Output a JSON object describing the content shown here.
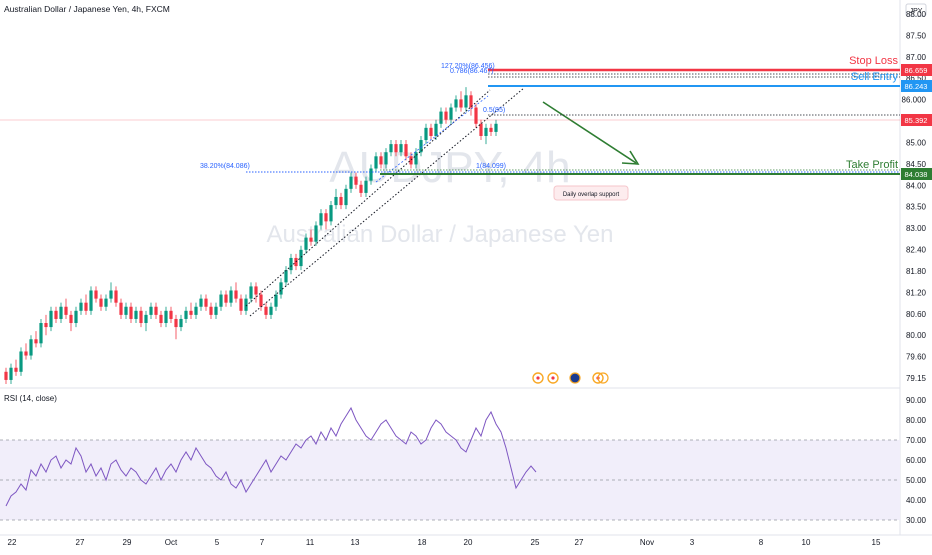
{
  "header": {
    "title": "Australian Dollar / Japanese Yen, 4h, FXCM",
    "currency": "JPY"
  },
  "watermark": {
    "symbol": "AUDJPY, 4h",
    "name": "Australian Dollar / Japanese Yen"
  },
  "colors": {
    "bull": "#089981",
    "bear": "#f23645",
    "stop": "#f23645",
    "entry": "#2196f3",
    "profit": "#2e7d32",
    "fib": "#2962ff",
    "rsi_line": "#7e57c2",
    "rsi_fill": "#f1eefa",
    "current": "#f23645"
  },
  "price_axis": {
    "labels": [
      "88.00",
      "87.50",
      "87.00",
      "86.50",
      "86.000",
      "85.50",
      "85.00",
      "84.50",
      "84.00",
      "83.50",
      "83.00",
      "82.40",
      "81.80",
      "81.20",
      "80.60",
      "80.00",
      "79.60",
      "79.15"
    ]
  },
  "rsi_axis": {
    "labels": [
      "90.00",
      "80.00",
      "70.00",
      "60.00",
      "50.00",
      "40.00",
      "30.00"
    ]
  },
  "rsi": {
    "title": "RSI (14, close)",
    "upper": 70,
    "lower": 30,
    "values": [
      37,
      42,
      44,
      48,
      45,
      55,
      52,
      58,
      54,
      60,
      62,
      56,
      60,
      58,
      66,
      62,
      54,
      58,
      52,
      56,
      50,
      58,
      60,
      55,
      52,
      56,
      54,
      50,
      48,
      52,
      56,
      50,
      55,
      58,
      54,
      60,
      64,
      60,
      66,
      62,
      58,
      56,
      52,
      50,
      54,
      48,
      46,
      50,
      44,
      48,
      52,
      56,
      60,
      54,
      58,
      62,
      60,
      64,
      68,
      66,
      70,
      72,
      68,
      74,
      70,
      76,
      72,
      78,
      82,
      86,
      80,
      76,
      72,
      70,
      74,
      78,
      80,
      76,
      72,
      70,
      68,
      74,
      72,
      68,
      70,
      76,
      80,
      78,
      74,
      72,
      70,
      66,
      64,
      70,
      76,
      72,
      80,
      84,
      78,
      74,
      66,
      56,
      46,
      50,
      54,
      57,
      54
    ],
    "first_index": 0
  },
  "levels": {
    "stop_loss": {
      "label": "Stop Loss",
      "price_label": "86.659",
      "value": 86.659
    },
    "sell_entry": {
      "label": "Sell Entry",
      "price_label": "86.243",
      "value": 86.243
    },
    "take_profit": {
      "label": "Take Profit",
      "price_label": "84.038",
      "value": 84.038
    },
    "current": {
      "price_label": "85.392",
      "value": 85.392
    }
  },
  "fibs": {
    "ext": "127.20%(86.456)",
    "retr786": "0.786(86.467)",
    "retr382": "38.20%(84.086)",
    "retr1": "1(84.099)",
    "small": "0.5(85)"
  },
  "annotation": "Daily overlap support",
  "date_axis": {
    "labels": [
      "22",
      "27",
      "29",
      "Oct",
      "5",
      "7",
      "11",
      "13",
      "18",
      "20",
      "25",
      "27",
      "Nov",
      "3",
      "8",
      "10",
      "15"
    ]
  },
  "chart_data": {
    "type": "candlestick",
    "title": "Australian Dollar / Japanese Yen, 4h, FXCM",
    "ylim": [
      79.0,
      88.1
    ],
    "candles": [
      [
        79.3,
        79.1,
        79.4,
        79.0
      ],
      [
        79.1,
        79.4,
        79.5,
        79.0
      ],
      [
        79.4,
        79.3,
        79.6,
        79.2
      ],
      [
        79.3,
        79.8,
        79.9,
        79.2
      ],
      [
        79.8,
        79.7,
        80.0,
        79.6
      ],
      [
        79.7,
        80.1,
        80.2,
        79.6
      ],
      [
        80.1,
        80.0,
        80.3,
        79.9
      ],
      [
        80.0,
        80.5,
        80.6,
        79.9
      ],
      [
        80.5,
        80.4,
        80.7,
        80.2
      ],
      [
        80.4,
        80.8,
        80.9,
        80.3
      ],
      [
        80.8,
        80.6,
        80.9,
        80.5
      ],
      [
        80.6,
        80.9,
        81.0,
        80.5
      ],
      [
        80.9,
        80.7,
        81.1,
        80.6
      ],
      [
        80.7,
        80.5,
        80.8,
        80.3
      ],
      [
        80.5,
        80.8,
        80.9,
        80.4
      ],
      [
        80.8,
        81.0,
        81.1,
        80.7
      ],
      [
        81.0,
        80.8,
        81.2,
        80.7
      ],
      [
        80.8,
        81.3,
        81.4,
        80.7
      ],
      [
        81.3,
        81.1,
        81.4,
        81.0
      ],
      [
        81.1,
        80.9,
        81.2,
        80.8
      ],
      [
        80.9,
        81.1,
        81.2,
        80.8
      ],
      [
        81.1,
        81.3,
        81.5,
        81.0
      ],
      [
        81.3,
        81.0,
        81.4,
        80.9
      ],
      [
        81.0,
        80.7,
        81.1,
        80.6
      ],
      [
        80.7,
        80.9,
        81.0,
        80.6
      ],
      [
        80.9,
        80.6,
        81.0,
        80.5
      ],
      [
        80.6,
        80.8,
        80.9,
        80.5
      ],
      [
        80.8,
        80.5,
        80.9,
        80.4
      ],
      [
        80.5,
        80.7,
        80.8,
        80.3
      ],
      [
        80.7,
        80.9,
        81.0,
        80.6
      ],
      [
        80.9,
        80.7,
        81.0,
        80.6
      ],
      [
        80.7,
        80.5,
        80.8,
        80.4
      ],
      [
        80.5,
        80.8,
        80.9,
        80.4
      ],
      [
        80.8,
        80.6,
        80.9,
        80.5
      ],
      [
        80.6,
        80.4,
        80.7,
        80.1
      ],
      [
        80.4,
        80.6,
        80.7,
        80.3
      ],
      [
        80.6,
        80.8,
        80.9,
        80.5
      ],
      [
        80.8,
        80.7,
        81.0,
        80.6
      ],
      [
        80.7,
        80.9,
        81.0,
        80.6
      ],
      [
        80.9,
        81.1,
        81.2,
        80.8
      ],
      [
        81.1,
        80.9,
        81.2,
        80.8
      ],
      [
        80.9,
        80.7,
        81.0,
        80.6
      ],
      [
        80.7,
        80.9,
        81.0,
        80.6
      ],
      [
        80.9,
        81.2,
        81.3,
        80.8
      ],
      [
        81.2,
        81.0,
        81.3,
        80.9
      ],
      [
        81.0,
        81.3,
        81.4,
        80.9
      ],
      [
        81.3,
        81.1,
        81.5,
        81.0
      ],
      [
        81.1,
        80.8,
        81.2,
        80.7
      ],
      [
        80.8,
        81.1,
        81.2,
        80.7
      ],
      [
        81.1,
        81.4,
        81.5,
        81.0
      ],
      [
        81.4,
        81.2,
        81.5,
        81.0
      ],
      [
        81.2,
        80.9,
        81.3,
        80.8
      ],
      [
        80.9,
        80.7,
        81.0,
        80.6
      ],
      [
        80.7,
        80.9,
        81.0,
        80.6
      ],
      [
        80.9,
        81.2,
        81.3,
        80.8
      ],
      [
        81.2,
        81.5,
        81.6,
        81.1
      ],
      [
        81.5,
        81.8,
        81.9,
        81.4
      ],
      [
        81.8,
        82.1,
        82.2,
        81.7
      ],
      [
        82.1,
        81.9,
        82.2,
        81.8
      ],
      [
        81.9,
        82.3,
        82.4,
        81.8
      ],
      [
        82.3,
        82.6,
        82.7,
        82.2
      ],
      [
        82.6,
        82.5,
        82.8,
        82.4
      ],
      [
        82.5,
        82.9,
        83.0,
        82.4
      ],
      [
        82.9,
        83.2,
        83.3,
        82.8
      ],
      [
        83.2,
        83.0,
        83.3,
        82.8
      ],
      [
        83.0,
        83.4,
        83.5,
        82.9
      ],
      [
        83.4,
        83.6,
        83.8,
        83.3
      ],
      [
        83.6,
        83.4,
        83.7,
        83.3
      ],
      [
        83.4,
        83.8,
        83.9,
        83.3
      ],
      [
        83.8,
        84.1,
        84.2,
        83.7
      ],
      [
        84.1,
        83.9,
        84.2,
        83.8
      ],
      [
        83.9,
        83.7,
        84.0,
        83.6
      ],
      [
        83.7,
        84.0,
        84.1,
        83.6
      ],
      [
        84.0,
        84.3,
        84.4,
        83.9
      ],
      [
        84.3,
        84.6,
        84.7,
        84.2
      ],
      [
        84.6,
        84.4,
        84.7,
        84.3
      ],
      [
        84.4,
        84.7,
        84.8,
        84.3
      ],
      [
        84.7,
        84.9,
        85.0,
        84.6
      ],
      [
        84.9,
        84.7,
        85.0,
        84.6
      ],
      [
        84.7,
        84.9,
        85.0,
        84.6
      ],
      [
        84.9,
        84.6,
        85.0,
        84.5
      ],
      [
        84.6,
        84.4,
        84.7,
        84.3
      ],
      [
        84.4,
        84.7,
        84.8,
        84.3
      ],
      [
        84.7,
        85.0,
        85.1,
        84.6
      ],
      [
        85.0,
        85.3,
        85.4,
        84.9
      ],
      [
        85.3,
        85.1,
        85.4,
        85.0
      ],
      [
        85.1,
        85.4,
        85.5,
        85.0
      ],
      [
        85.4,
        85.7,
        85.8,
        85.3
      ],
      [
        85.7,
        85.5,
        85.8,
        85.4
      ],
      [
        85.5,
        85.8,
        85.9,
        85.4
      ],
      [
        85.8,
        86.0,
        86.1,
        85.7
      ],
      [
        86.0,
        85.8,
        86.2,
        85.7
      ],
      [
        85.8,
        86.1,
        86.3,
        85.7
      ],
      [
        86.1,
        85.8,
        86.2,
        85.6
      ],
      [
        85.8,
        85.4,
        85.9,
        85.3
      ],
      [
        85.4,
        85.1,
        85.5,
        85.0
      ],
      [
        85.1,
        85.3,
        85.4,
        84.9
      ],
      [
        85.3,
        85.2,
        85.4,
        85.1
      ],
      [
        85.2,
        85.4,
        85.5,
        85.1
      ]
    ]
  }
}
